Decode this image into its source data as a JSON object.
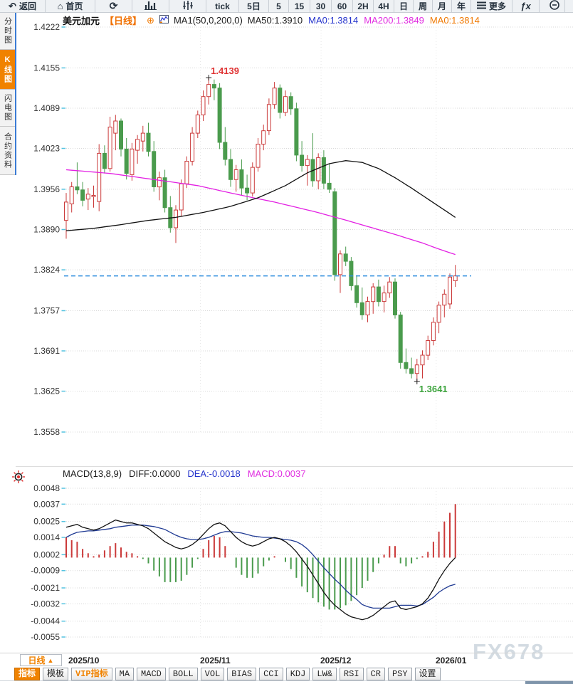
{
  "toolbar": {
    "items": [
      {
        "name": "back",
        "icon": "back-arrow",
        "label": "返回"
      },
      {
        "name": "home",
        "icon": "home",
        "label": "首页"
      },
      {
        "name": "refresh",
        "icon": "refresh",
        "label": ""
      },
      {
        "name": "chart-type-bar",
        "icon": "bar-chart",
        "label": ""
      },
      {
        "name": "chart-type-candle",
        "icon": "candles",
        "label": ""
      },
      {
        "name": "interval-tick",
        "label": "tick"
      },
      {
        "name": "interval-5d",
        "label": "5日"
      },
      {
        "name": "interval-5m",
        "label": "5"
      },
      {
        "name": "interval-15m",
        "label": "15"
      },
      {
        "name": "interval-30m",
        "label": "30"
      },
      {
        "name": "interval-60m",
        "label": "60"
      },
      {
        "name": "interval-2h",
        "label": "2H"
      },
      {
        "name": "interval-4h",
        "label": "4H"
      },
      {
        "name": "interval-day",
        "label": "日"
      },
      {
        "name": "interval-week",
        "label": "周"
      },
      {
        "name": "interval-month",
        "label": "月"
      },
      {
        "name": "interval-year",
        "label": "年"
      },
      {
        "name": "more",
        "icon": "menu",
        "label": "更多"
      },
      {
        "name": "formula",
        "icon": "fx",
        "label": ""
      },
      {
        "name": "zoom-out",
        "icon": "zoom-out",
        "label": ""
      }
    ]
  },
  "sidebar": {
    "items": [
      {
        "name": "time-chart",
        "label": "分时图",
        "active": false
      },
      {
        "name": "kline-chart",
        "label": "K线图",
        "active": true
      },
      {
        "name": "lightning-chart",
        "label": "闪电图",
        "active": false
      },
      {
        "name": "contract-info",
        "label": "合约资料",
        "active": false
      }
    ]
  },
  "chart_header": {
    "symbol": "美元加元",
    "period": "【日线】",
    "add_icon": "⊕",
    "ma_formula": "MA1(50,0,200,0)",
    "ma_values": [
      {
        "text": "MA50:1.3910",
        "color": "#1a1a1a"
      },
      {
        "text": "MA0:1.3814",
        "color": "#2433cc"
      },
      {
        "text": "MA200:1.3849",
        "color": "#e02ce0"
      },
      {
        "text": "MA0:1.3814",
        "color": "#f07800"
      }
    ]
  },
  "macd_header": {
    "formula": "MACD(13,8,9)",
    "values": [
      {
        "text": "DIFF:0.0000",
        "color": "#1a1a1a"
      },
      {
        "text": "DEA:-0.0018",
        "color": "#2433cc"
      },
      {
        "text": "MACD:0.0037",
        "color": "#e02ce0"
      }
    ]
  },
  "chart_data": [
    {
      "type": "candlestick",
      "title": "美元加元 日线",
      "ylabel": "price",
      "ylim": [
        1.3558,
        1.4222
      ],
      "y_ticks": [
        1.4222,
        1.4155,
        1.4089,
        1.4023,
        1.3956,
        1.389,
        1.3824,
        1.3757,
        1.3691,
        1.3625,
        1.3558
      ],
      "grid": true,
      "up_color": "#cb3a3a",
      "down_color": "#4a9b4d",
      "candles": [
        [
          1.3905,
          1.395,
          1.3875,
          1.3935
        ],
        [
          1.3932,
          1.3968,
          1.3918,
          1.396
        ],
        [
          1.396,
          1.4,
          1.3948,
          1.3955
        ],
        [
          1.3955,
          1.3968,
          1.3928,
          1.3938
        ],
        [
          1.394,
          1.3958,
          1.3922,
          1.3948
        ],
        [
          1.3944,
          1.3962,
          1.3926,
          1.3946
        ],
        [
          1.3936,
          1.403,
          1.392,
          1.4015
        ],
        [
          1.4015,
          1.4028,
          1.3982,
          1.399
        ],
        [
          1.399,
          1.4075,
          1.3985,
          1.4058
        ],
        [
          1.4048,
          1.4078,
          1.402,
          1.4068
        ],
        [
          1.4068,
          1.4072,
          1.401,
          1.4022
        ],
        [
          1.4022,
          1.404,
          1.3972,
          1.3982
        ],
        [
          1.398,
          1.4032,
          1.397,
          1.4022
        ],
        [
          1.402,
          1.4045,
          1.3998,
          1.4038
        ],
        [
          1.4035,
          1.406,
          1.4018,
          1.4048
        ],
        [
          1.4048,
          1.4065,
          1.401,
          1.4018
        ],
        [
          1.4018,
          1.4035,
          1.3952,
          1.396
        ],
        [
          1.396,
          1.3985,
          1.3938,
          1.3975
        ],
        [
          1.3975,
          1.3988,
          1.3918,
          1.3926
        ],
        [
          1.3926,
          1.3945,
          1.3885,
          1.3893
        ],
        [
          1.3893,
          1.393,
          1.3868,
          1.3922
        ],
        [
          1.3922,
          1.3972,
          1.3912,
          1.3965
        ],
        [
          1.3965,
          1.401,
          1.3958,
          1.4002
        ],
        [
          1.4002,
          1.4058,
          1.3995,
          1.4048
        ],
        [
          1.4048,
          1.4085,
          1.404,
          1.4078
        ],
        [
          1.4078,
          1.4118,
          1.4068,
          1.4108
        ],
        [
          1.4108,
          1.4139,
          1.4095,
          1.4128
        ],
        [
          1.4128,
          1.4136,
          1.4102,
          1.4122
        ],
        [
          1.4122,
          1.413,
          1.4022,
          1.4033
        ],
        [
          1.4033,
          1.4058,
          1.3995,
          1.4005
        ],
        [
          1.4005,
          1.4022,
          1.396,
          1.3972
        ],
        [
          1.3972,
          1.3996,
          1.3952,
          1.3988
        ],
        [
          1.3988,
          1.4005,
          1.3946,
          1.3958
        ],
        [
          1.3958,
          1.398,
          1.3938,
          1.395
        ],
        [
          1.395,
          1.4,
          1.3944,
          1.3992
        ],
        [
          1.3992,
          1.404,
          1.3985,
          1.403
        ],
        [
          1.403,
          1.4062,
          1.402,
          1.4052
        ],
        [
          1.4052,
          1.4105,
          1.4045,
          1.4095
        ],
        [
          1.4095,
          1.4132,
          1.4088,
          1.4122
        ],
        [
          1.4122,
          1.4128,
          1.4072,
          1.4082
        ],
        [
          1.4082,
          1.4118,
          1.4076,
          1.4108
        ],
        [
          1.4108,
          1.4115,
          1.4078,
          1.4088
        ],
        [
          1.4088,
          1.4098,
          1.4002,
          1.4012
        ],
        [
          1.4012,
          1.4035,
          1.3985,
          1.3995
        ],
        [
          1.3995,
          1.4012,
          1.3962,
          1.4005
        ],
        [
          1.4005,
          1.4048,
          1.396,
          1.397
        ],
        [
          1.397,
          1.4015,
          1.3956,
          1.4008
        ],
        [
          1.4008,
          1.402,
          1.3956,
          1.3966
        ],
        [
          1.3966,
          1.3998,
          1.395,
          1.3956
        ],
        [
          1.3952,
          1.3958,
          1.3806,
          1.3816
        ],
        [
          1.3816,
          1.3856,
          1.3786,
          1.385
        ],
        [
          1.385,
          1.3862,
          1.383,
          1.3838
        ],
        [
          1.3838,
          1.3845,
          1.379,
          1.3798
        ],
        [
          1.3798,
          1.3815,
          1.3762,
          1.377
        ],
        [
          1.377,
          1.3795,
          1.3742,
          1.375
        ],
        [
          1.375,
          1.378,
          1.3738,
          1.3772
        ],
        [
          1.3772,
          1.3802,
          1.3752,
          1.3796
        ],
        [
          1.3796,
          1.3808,
          1.3764,
          1.3772
        ],
        [
          1.3772,
          1.3798,
          1.3754,
          1.3786
        ],
        [
          1.3786,
          1.3812,
          1.3778,
          1.3804
        ],
        [
          1.3804,
          1.381,
          1.3744,
          1.375
        ],
        [
          1.375,
          1.3755,
          1.3662,
          1.3672
        ],
        [
          1.3672,
          1.3695,
          1.3654,
          1.3662
        ],
        [
          1.3662,
          1.368,
          1.3646,
          1.3654
        ],
        [
          1.3654,
          1.3678,
          1.3641,
          1.3668
        ],
        [
          1.3668,
          1.3692,
          1.3646,
          1.3684
        ],
        [
          1.3684,
          1.3716,
          1.3676,
          1.3708
        ],
        [
          1.3708,
          1.3746,
          1.37,
          1.3738
        ],
        [
          1.3738,
          1.3772,
          1.372,
          1.3766
        ],
        [
          1.3766,
          1.3792,
          1.3746,
          1.3784
        ],
        [
          1.3768,
          1.3818,
          1.376,
          1.3812
        ],
        [
          1.3806,
          1.3832,
          1.3796,
          1.3814
        ]
      ],
      "overlays": {
        "ma50": {
          "name": "MA50",
          "color": "#111111",
          "points": [
            [
              0,
              1.3888
            ],
            [
              5,
              1.3892
            ],
            [
              10,
              1.3898
            ],
            [
              15,
              1.3905
            ],
            [
              20,
              1.391
            ],
            [
              25,
              1.3918
            ],
            [
              30,
              1.3928
            ],
            [
              35,
              1.3942
            ],
            [
              40,
              1.3962
            ],
            [
              44,
              1.3983
            ],
            [
              48,
              1.3998
            ],
            [
              51,
              1.4003
            ],
            [
              54,
              1.4
            ],
            [
              57,
              1.399
            ],
            [
              60,
              1.3975
            ],
            [
              63,
              1.3958
            ],
            [
              66,
              1.394
            ],
            [
              69,
              1.3922
            ],
            [
              71,
              1.391
            ]
          ]
        },
        "ma200": {
          "name": "MA200",
          "color": "#e320e3",
          "points": [
            [
              0,
              1.3988
            ],
            [
              8,
              1.3982
            ],
            [
              16,
              1.3972
            ],
            [
              24,
              1.3962
            ],
            [
              31,
              1.3948
            ],
            [
              38,
              1.3935
            ],
            [
              45,
              1.392
            ],
            [
              50,
              1.3908
            ],
            [
              55,
              1.3895
            ],
            [
              60,
              1.3882
            ],
            [
              65,
              1.3868
            ],
            [
              68,
              1.3858
            ],
            [
              71,
              1.3849
            ]
          ]
        },
        "last_price_line": {
          "value": 1.3814,
          "color": "#2e8ede",
          "style": "dashed"
        }
      },
      "annotations": [
        {
          "text": "1.4139",
          "index": 26,
          "price": 1.4139,
          "color": "#e03333",
          "position": "high"
        },
        {
          "text": "1.3641",
          "index": 64,
          "price": 1.3641,
          "color": "#3fa53f",
          "position": "low"
        }
      ]
    },
    {
      "type": "macd",
      "params": "MACD(13,8,9)",
      "ylim": [
        -0.0055,
        0.0048
      ],
      "y_ticks": [
        0.0048,
        0.0037,
        0.0025,
        0.0014,
        0.0002,
        -0.0009,
        -0.0021,
        -0.0032,
        -0.0044,
        -0.0055
      ],
      "colors": {
        "diff": "#111111",
        "dea": "#1f3a93",
        "pos": "#cb3a3a",
        "neg": "#4a9b4d"
      },
      "diff": [
        0.0021,
        0.0022,
        0.0023,
        0.0021,
        0.002,
        0.0019,
        0.002,
        0.0022,
        0.0024,
        0.0026,
        0.0025,
        0.0024,
        0.0024,
        0.0023,
        0.0022,
        0.002,
        0.0017,
        0.0014,
        0.0011,
        0.0009,
        0.0007,
        0.0006,
        0.0007,
        0.0009,
        0.0012,
        0.0016,
        0.002,
        0.0023,
        0.0024,
        0.0022,
        0.0018,
        0.0014,
        0.0011,
        0.0009,
        0.0008,
        0.0009,
        0.0011,
        0.0013,
        0.0014,
        0.0013,
        0.0011,
        0.0008,
        0.0004,
        -0.0001,
        -0.0006,
        -0.0012,
        -0.0018,
        -0.0024,
        -0.0029,
        -0.0033,
        -0.0036,
        -0.0039,
        -0.0041,
        -0.0042,
        -0.0043,
        -0.0042,
        -0.004,
        -0.0037,
        -0.0034,
        -0.0031,
        -0.003,
        -0.0035,
        -0.0036,
        -0.0035,
        -0.0034,
        -0.0032,
        -0.0028,
        -0.0022,
        -0.0015,
        -0.0009,
        -0.0004,
        0.0
      ],
      "hist": [
        0.0014,
        0.0012,
        0.0011,
        0.0006,
        0.0003,
        0.0001,
        0.0002,
        0.0005,
        0.0008,
        0.001,
        0.0007,
        0.0004,
        0.0003,
        0.0001,
        -0.0001,
        -0.0004,
        -0.0009,
        -0.0013,
        -0.0017,
        -0.0017,
        -0.0017,
        -0.0016,
        -0.0012,
        -0.0007,
        -0.0001,
        0.0006,
        0.0012,
        0.0015,
        0.0014,
        0.0008,
        0.0,
        -0.0007,
        -0.0012,
        -0.0014,
        -0.0014,
        -0.0011,
        -0.0006,
        -0.0002,
        0.0001,
        0.0,
        -0.0003,
        -0.0008,
        -0.0014,
        -0.002,
        -0.0024,
        -0.0028,
        -0.0031,
        -0.0034,
        -0.0036,
        -0.0036,
        -0.0035,
        -0.0033,
        -0.003,
        -0.0026,
        -0.0021,
        -0.0016,
        -0.001,
        -0.0004,
        0.0002,
        0.0008,
        0.0008,
        -0.0004,
        -0.0006,
        -0.0004,
        -0.0001,
        0.0001,
        0.0004,
        0.0011,
        0.0018,
        0.0025,
        0.0031,
        0.0037
      ],
      "dea_rule": "dea = diff - hist/2"
    }
  ],
  "xaxis": {
    "period_button": {
      "label": "日线",
      "arrow": "▲"
    },
    "labels": [
      {
        "text": "2025/10",
        "index": 1
      },
      {
        "text": "2025/11",
        "index": 25
      },
      {
        "text": "2025/12",
        "index": 47
      },
      {
        "text": "2026/01",
        "index": 68
      }
    ],
    "watermark": "FX678"
  },
  "bottom_toolbar": {
    "items": [
      {
        "name": "indicators",
        "label": "指标",
        "state": "active"
      },
      {
        "name": "templates",
        "label": "模板",
        "state": ""
      },
      {
        "name": "vip-indicators",
        "label": "VIP指标",
        "state": "vip"
      },
      {
        "name": "ma",
        "label": "MA",
        "state": ""
      },
      {
        "name": "macd",
        "label": "MACD",
        "state": ""
      },
      {
        "name": "boll",
        "label": "BOLL",
        "state": ""
      },
      {
        "name": "vol",
        "label": "VOL",
        "state": ""
      },
      {
        "name": "bias",
        "label": "BIAS",
        "state": ""
      },
      {
        "name": "cci",
        "label": "CCI",
        "state": ""
      },
      {
        "name": "kdj",
        "label": "KDJ",
        "state": ""
      },
      {
        "name": "lw",
        "label": "LW&",
        "state": ""
      },
      {
        "name": "rsi",
        "label": "RSI",
        "state": ""
      },
      {
        "name": "cr",
        "label": "CR",
        "state": ""
      },
      {
        "name": "psy",
        "label": "PSY",
        "state": ""
      },
      {
        "name": "settings",
        "label": "设置",
        "state": ""
      }
    ]
  }
}
